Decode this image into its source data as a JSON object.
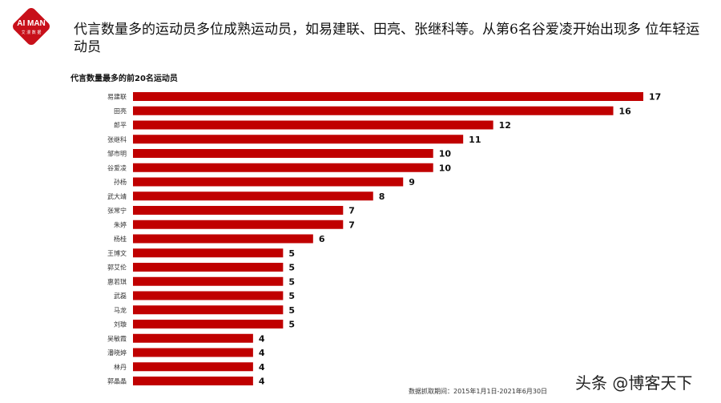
{
  "logo": {
    "text": "AI MAN",
    "sub": "艾 漫 数 据"
  },
  "headline": "代言数量多的运动员多位成熟运动员，如易建联、田亮、张继科等。从第6名谷爱凌开始出现多 位年轻运动员",
  "chart_data": {
    "type": "bar",
    "orientation": "horizontal",
    "title": "代言数量最多的前20名运动员",
    "categories": [
      "易建联",
      "田亮",
      "郎平",
      "张继科",
      "邹市明",
      "谷爱凌",
      "孙杨",
      "武大靖",
      "张常宁",
      "朱婷",
      "杨桂",
      "王博文",
      "郭艾伦",
      "惠若琪",
      "武磊",
      "马龙",
      "刘璇",
      "吴敏霞",
      "潘晓婷",
      "林丹",
      "郭晶晶"
    ],
    "values": [
      17,
      16,
      12,
      11,
      10,
      10,
      9,
      8,
      7,
      7,
      6,
      5,
      5,
      5,
      5,
      5,
      5,
      4,
      4,
      4,
      4
    ],
    "color": "#c00000",
    "data_labels": true,
    "grid": false
  },
  "source": "数据抓取期间：2015年1月1日-2021年6月30日",
  "watermark": "头条 @博客天下"
}
